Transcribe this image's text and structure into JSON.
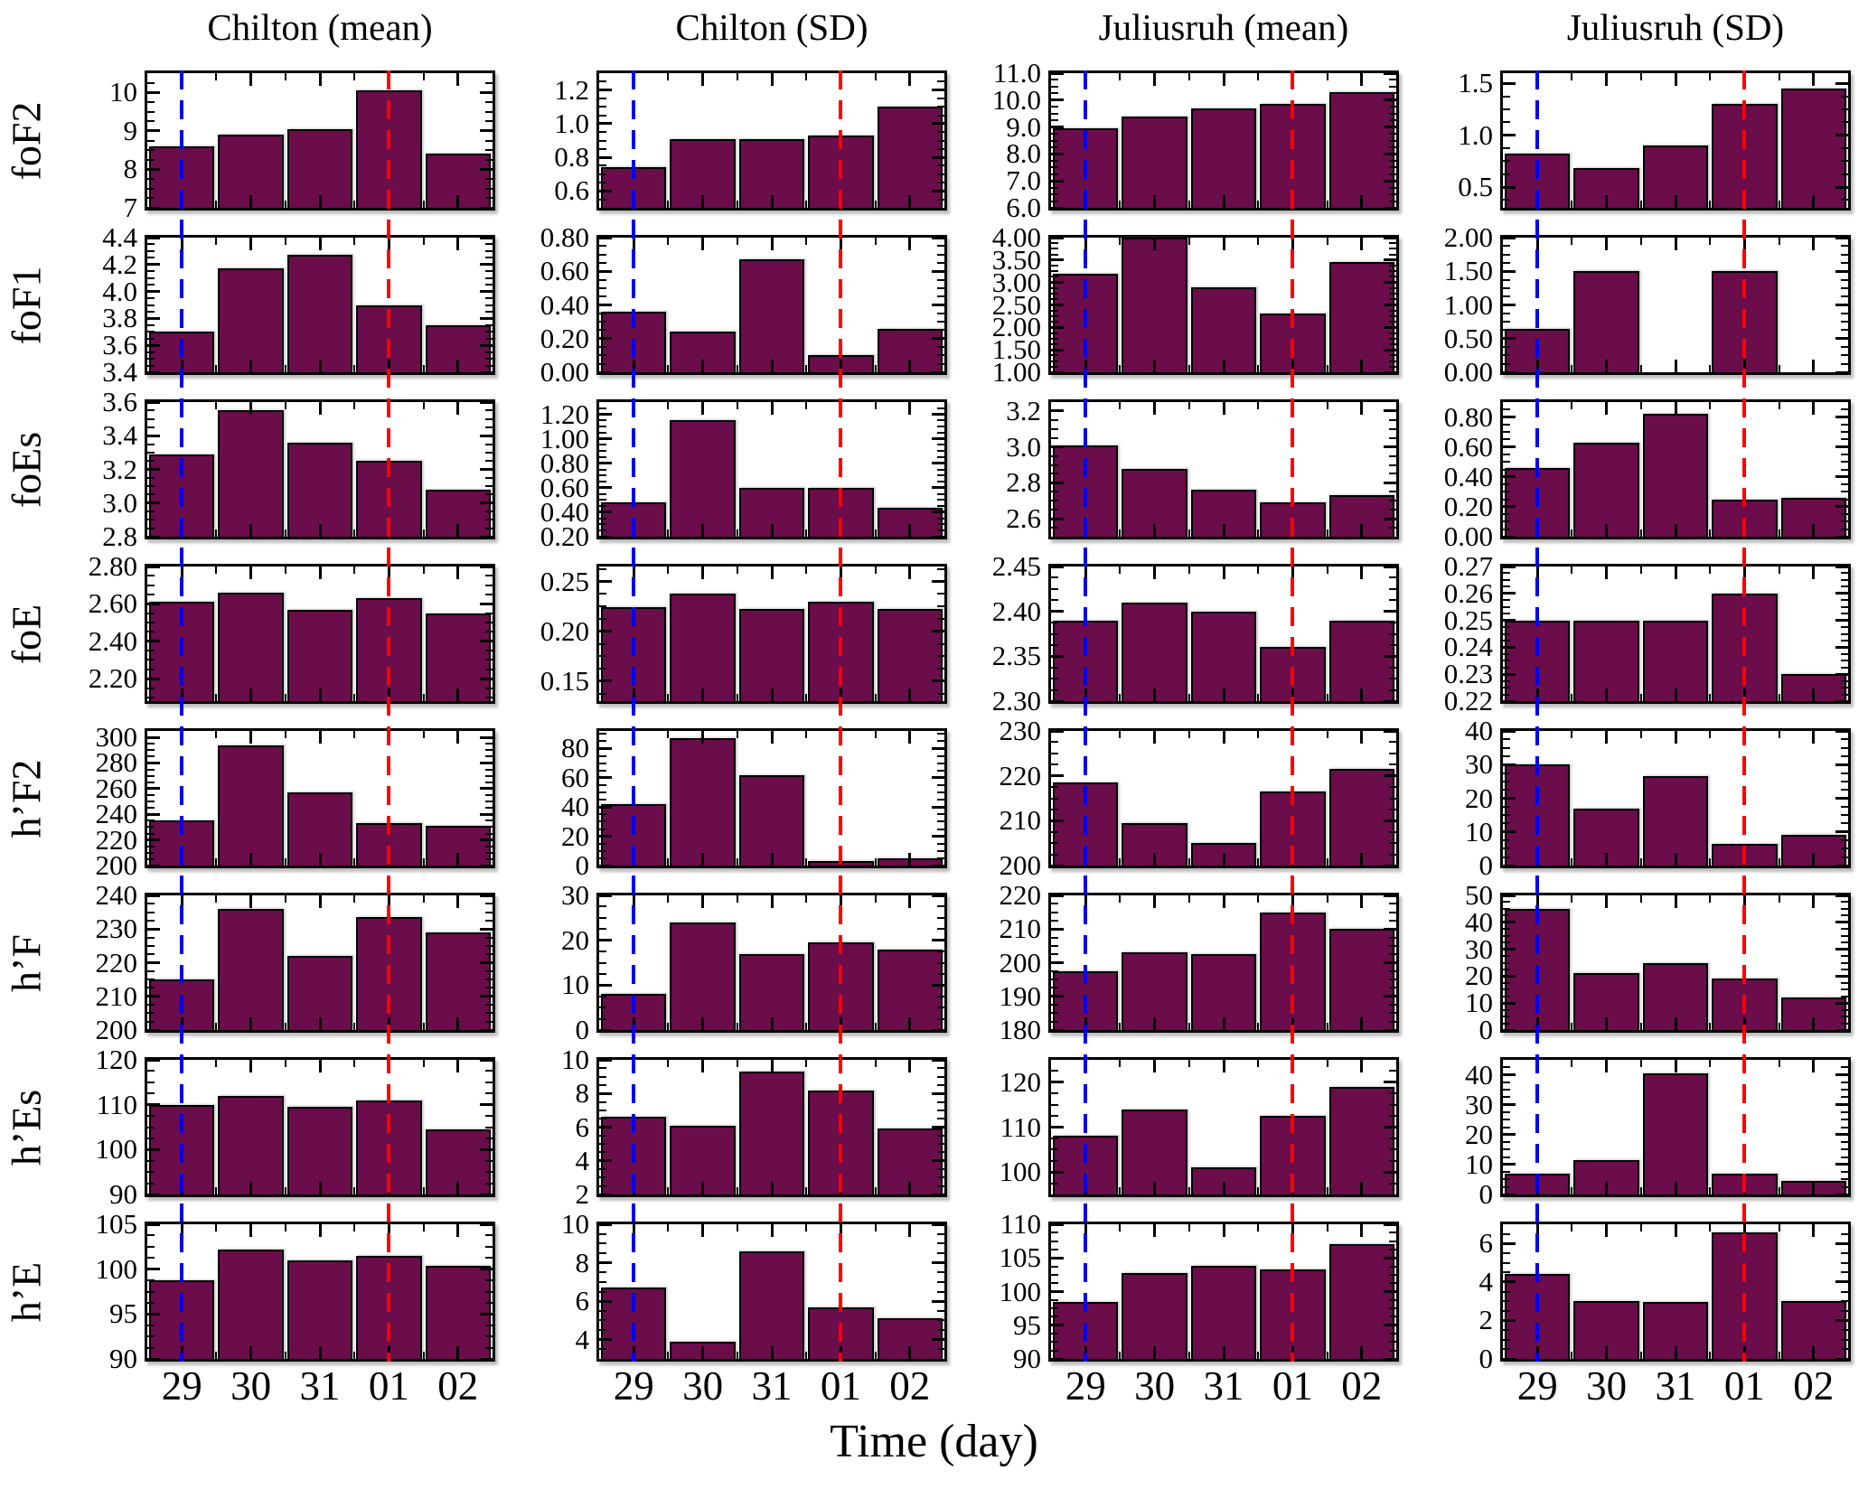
{
  "figure": {
    "xlabel": "Time (day)",
    "bar_fill": "#6B0C4B",
    "bar_edge": "#000000",
    "vline_blue": "#0000EE",
    "vline_red": "#FF0000"
  },
  "chart_data": {
    "type": "bar",
    "grid": "off",
    "legend": "none",
    "xlabel": "Time (day)",
    "x_categories": [
      "29",
      "30",
      "31",
      "01",
      "02"
    ],
    "columns": [
      "Chilton (mean)",
      "Chilton (SD)",
      "Juliusruh (mean)",
      "Juliusruh (SD)"
    ],
    "vlines": [
      {
        "x_category": "29",
        "color": "#0000EE",
        "style": "dashed"
      },
      {
        "x_category": "01",
        "color": "#FF0000",
        "style": "dashed"
      }
    ],
    "rows": [
      {
        "label": "foF2",
        "subplots": [
          {
            "column": "Chilton (mean)",
            "ylim": [
              7,
              10.5
            ],
            "yticks": [
              "7",
              "8",
              "9",
              "10"
            ],
            "values": [
              8.6,
              8.9,
              9.05,
              10.05,
              8.4
            ]
          },
          {
            "column": "Chilton (SD)",
            "ylim": [
              0.5,
              1.3
            ],
            "yticks": [
              "0.6",
              "0.8",
              "1.0",
              "1.2"
            ],
            "values": [
              0.74,
              0.91,
              0.91,
              0.93,
              1.1
            ]
          },
          {
            "column": "Juliusruh (mean)",
            "ylim": [
              6,
              11
            ],
            "yticks": [
              "6.0",
              "7.0",
              "8.0",
              "9.0",
              "10.0",
              "11.0"
            ],
            "values": [
              8.95,
              9.4,
              9.7,
              9.85,
              10.3
            ]
          },
          {
            "column": "Juliusruh (SD)",
            "ylim": [
              0.3,
              1.6
            ],
            "yticks": [
              "0.5",
              "1.0",
              "1.5"
            ],
            "values": [
              0.82,
              0.68,
              0.9,
              1.3,
              1.45
            ]
          }
        ]
      },
      {
        "label": "foF1",
        "subplots": [
          {
            "column": "Chilton (mean)",
            "ylim": [
              3.4,
              4.4
            ],
            "yticks": [
              "3.4",
              "3.6",
              "3.8",
              "4.0",
              "4.2",
              "4.4"
            ],
            "values": [
              3.7,
              4.17,
              4.27,
              3.9,
              3.75
            ]
          },
          {
            "column": "Chilton (SD)",
            "ylim": [
              0,
              0.8
            ],
            "yticks": [
              "0.00",
              "0.20",
              "0.40",
              "0.60",
              "0.80"
            ],
            "values": [
              0.36,
              0.24,
              0.67,
              0.1,
              0.26
            ]
          },
          {
            "column": "Juliusruh (mean)",
            "ylim": [
              1,
              4
            ],
            "yticks": [
              "1.00",
              "1.50",
              "2.00",
              "2.50",
              "3.00",
              "3.50",
              "4.00"
            ],
            "values": [
              3.2,
              4.0,
              2.9,
              2.3,
              3.45
            ]
          },
          {
            "column": "Juliusruh (SD)",
            "ylim": [
              0,
              2
            ],
            "yticks": [
              "0.00",
              "0.50",
              "1.00",
              "1.50",
              "2.00"
            ],
            "values": [
              0.65,
              1.5,
              0,
              1.5,
              0
            ]
          }
        ]
      },
      {
        "label": "foEs",
        "subplots": [
          {
            "column": "Chilton (mean)",
            "ylim": [
              2.8,
              3.6
            ],
            "yticks": [
              "2.8",
              "3.0",
              "3.2",
              "3.4",
              "3.6"
            ],
            "values": [
              3.29,
              3.55,
              3.36,
              3.25,
              3.08
            ]
          },
          {
            "column": "Chilton (SD)",
            "ylim": [
              0.2,
              1.3
            ],
            "yticks": [
              "0.20",
              "0.40",
              "0.60",
              "0.80",
              "1.00",
              "1.20"
            ],
            "values": [
              0.48,
              1.15,
              0.6,
              0.6,
              0.44
            ]
          },
          {
            "column": "Juliusruh (mean)",
            "ylim": [
              2.5,
              3.25
            ],
            "yticks": [
              "2.6",
              "2.8",
              "3.0",
              "3.2"
            ],
            "values": [
              3.01,
              2.88,
              2.76,
              2.69,
              2.73
            ]
          },
          {
            "column": "Juliusruh (SD)",
            "ylim": [
              0,
              0.9
            ],
            "yticks": [
              "0.00",
              "0.20",
              "0.40",
              "0.60",
              "0.80"
            ],
            "values": [
              0.46,
              0.63,
              0.82,
              0.25,
              0.26
            ]
          }
        ]
      },
      {
        "label": "foE",
        "subplots": [
          {
            "column": "Chilton (mean)",
            "ylim": [
              2.08,
              2.8
            ],
            "yticks": [
              "2.20",
              "2.40",
              "2.60",
              "2.80"
            ],
            "values": [
              2.61,
              2.66,
              2.57,
              2.63,
              2.55
            ]
          },
          {
            "column": "Chilton (SD)",
            "ylim": [
              0.13,
              0.265
            ],
            "yticks": [
              "0.15",
              "0.20",
              "0.25"
            ],
            "values": [
              0.224,
              0.238,
              0.222,
              0.23,
              0.222
            ]
          },
          {
            "column": "Juliusruh (mean)",
            "ylim": [
              2.3,
              2.45
            ],
            "yticks": [
              "2.30",
              "2.35",
              "2.40",
              "2.45"
            ],
            "values": [
              2.39,
              2.41,
              2.4,
              2.36,
              2.39
            ]
          },
          {
            "column": "Juliusruh (SD)",
            "ylim": [
              0.22,
              0.27
            ],
            "yticks": [
              "0.22",
              "0.23",
              "0.24",
              "0.25",
              "0.26",
              "0.27"
            ],
            "values": [
              0.25,
              0.25,
              0.25,
              0.26,
              0.23
            ]
          }
        ]
      },
      {
        "label": "h’F2",
        "subplots": [
          {
            "column": "Chilton (mean)",
            "ylim": [
              200,
              305
            ],
            "yticks": [
              "200",
              "220",
              "240",
              "260",
              "280",
              "300"
            ],
            "values": [
              235,
              294,
              257,
              233,
              231
            ]
          },
          {
            "column": "Chilton (SD)",
            "ylim": [
              0,
              92
            ],
            "yticks": [
              "0",
              "20",
              "40",
              "60",
              "80"
            ],
            "values": [
              42,
              87,
              62,
              3,
              5
            ]
          },
          {
            "column": "Juliusruh (mean)",
            "ylim": [
              200,
              230
            ],
            "yticks": [
              "200",
              "210",
              "220",
              "230"
            ],
            "values": [
              218.5,
              209.5,
              205,
              216.5,
              221.5
            ]
          },
          {
            "column": "Juliusruh (SD)",
            "ylim": [
              0,
              40
            ],
            "yticks": [
              "0",
              "10",
              "20",
              "30",
              "40"
            ],
            "values": [
              30,
              17,
              26.5,
              6.5,
              9
            ]
          }
        ]
      },
      {
        "label": "h’F",
        "subplots": [
          {
            "column": "Chilton (mean)",
            "ylim": [
              200,
              240
            ],
            "yticks": [
              "200",
              "210",
              "220",
              "230",
              "240"
            ],
            "values": [
              215,
              236,
              222,
              233.5,
              229
            ]
          },
          {
            "column": "Chilton (SD)",
            "ylim": [
              0,
              30
            ],
            "yticks": [
              "0",
              "10",
              "20",
              "30"
            ],
            "values": [
              8,
              24,
              17,
              19.5,
              18
            ]
          },
          {
            "column": "Juliusruh (mean)",
            "ylim": [
              180,
              220
            ],
            "yticks": [
              "180",
              "190",
              "200",
              "210",
              "220"
            ],
            "values": [
              197.5,
              203,
              202.5,
              215,
              210
            ]
          },
          {
            "column": "Juliusruh (SD)",
            "ylim": [
              0,
              50
            ],
            "yticks": [
              "0",
              "10",
              "20",
              "30",
              "40",
              "50"
            ],
            "values": [
              45,
              21,
              25,
              19,
              12
            ]
          }
        ]
      },
      {
        "label": "h’Es",
        "subplots": [
          {
            "column": "Chilton (mean)",
            "ylim": [
              90,
              120
            ],
            "yticks": [
              "90",
              "100",
              "110",
              "120"
            ],
            "values": [
              110,
              112,
              109.5,
              111,
              104.5
            ]
          },
          {
            "column": "Chilton (SD)",
            "ylim": [
              2,
              10
            ],
            "yticks": [
              "2",
              "4",
              "6",
              "8",
              "10"
            ],
            "values": [
              6.6,
              6.1,
              9.3,
              8.2,
              5.9
            ]
          },
          {
            "column": "Juliusruh (mean)",
            "ylim": [
              95,
              125
            ],
            "yticks": [
              "100",
              "110",
              "120"
            ],
            "values": [
              108,
              114,
              101,
              112.5,
              119
            ]
          },
          {
            "column": "Juliusruh (SD)",
            "ylim": [
              0,
              45
            ],
            "yticks": [
              "0",
              "10",
              "20",
              "30",
              "40"
            ],
            "values": [
              7,
              11.5,
              40.5,
              7,
              4.5
            ]
          }
        ]
      },
      {
        "label": "h’E",
        "subplots": [
          {
            "column": "Chilton (mean)",
            "ylim": [
              90,
              105
            ],
            "yticks": [
              "90",
              "95",
              "100",
              "105"
            ],
            "values": [
              98.8,
              102.2,
              101,
              101.5,
              100.4
            ]
          },
          {
            "column": "Chilton (SD)",
            "ylim": [
              3,
              10
            ],
            "yticks": [
              "4",
              "6",
              "8",
              "10"
            ],
            "values": [
              6.7,
              3.9,
              8.6,
              5.7,
              5.1
            ]
          },
          {
            "column": "Juliusruh (mean)",
            "ylim": [
              90,
              110
            ],
            "yticks": [
              "90",
              "95",
              "100",
              "105",
              "110"
            ],
            "values": [
              98.5,
              102.8,
              103.8,
              103.3,
              107
            ]
          },
          {
            "column": "Juliusruh (SD)",
            "ylim": [
              0,
              7
            ],
            "yticks": [
              "0",
              "2",
              "4",
              "6"
            ],
            "values": [
              4.4,
              3.0,
              2.95,
              6.6,
              3.0
            ]
          }
        ]
      }
    ]
  }
}
